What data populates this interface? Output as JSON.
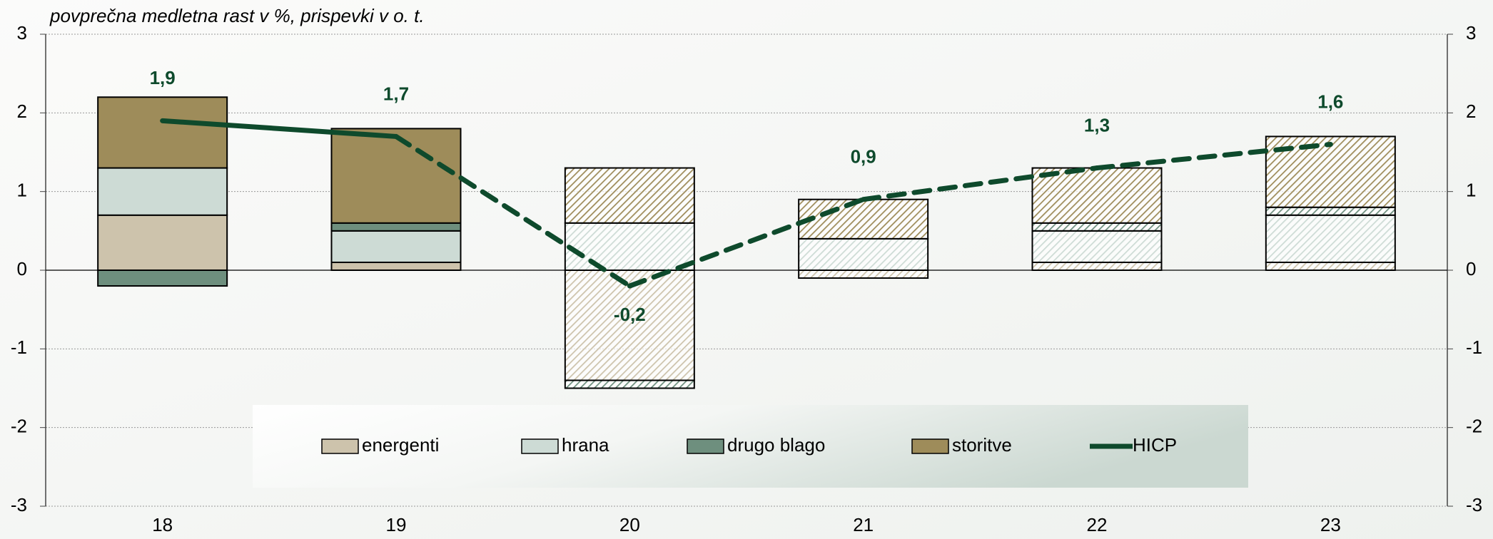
{
  "chart_data": {
    "type": "bar",
    "stacked": true,
    "subtitle": "povprečna medletna rast v %, prispevki v o. t.",
    "categories": [
      "18",
      "19",
      "20",
      "21",
      "22",
      "23"
    ],
    "hatched": [
      false,
      false,
      true,
      true,
      true,
      true
    ],
    "series": [
      {
        "name": "energenti",
        "color": "#cdc3ac",
        "values": [
          0.7,
          0.1,
          -1.4,
          -0.1,
          0.1,
          0.1
        ]
      },
      {
        "name": "hrana",
        "color": "#cddbd5",
        "values": [
          0.6,
          0.4,
          0.6,
          0.4,
          0.4,
          0.6
        ]
      },
      {
        "name": "drugo blago",
        "color": "#6e8f7e",
        "values": [
          -0.2,
          0.1,
          -0.1,
          0,
          0.1,
          0.1
        ]
      },
      {
        "name": "storitve",
        "color": "#9e8c5a",
        "values": [
          0.9,
          1.2,
          0.7,
          0.5,
          0.7,
          0.9
        ]
      },
      {
        "name": "HICP",
        "type": "line",
        "color": "#0e4a2c",
        "values": [
          1.9,
          1.7,
          -0.2,
          0.9,
          1.3,
          1.6
        ],
        "value_labels": [
          "1,9",
          "1,7",
          "-0,2",
          "0,9",
          "1,3",
          "1,6"
        ]
      }
    ],
    "ylim": [
      -3,
      3
    ],
    "yticks": [
      -3,
      -2,
      -1,
      0,
      1,
      2,
      3
    ],
    "y2lim": [
      -3,
      3
    ],
    "y2ticks": [
      -3,
      -2,
      -1,
      0,
      1,
      2,
      3
    ],
    "grid": true,
    "legend": "bottom"
  }
}
